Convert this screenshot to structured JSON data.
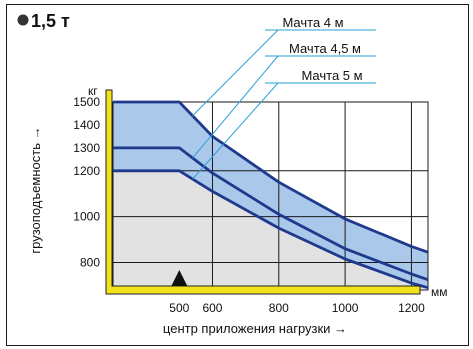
{
  "chart_data": {
    "type": "line",
    "title": "1,5 т",
    "xlabel": "центр приложения нагрузки →",
    "ylabel": "грузоподъемность →",
    "x_unit": "мм",
    "y_unit": "кг",
    "xlim": [
      300,
      1250
    ],
    "ylim": [
      680,
      1500
    ],
    "x_ticks": [
      500,
      600,
      800,
      1000,
      1200
    ],
    "x_tick_labels": [
      "500",
      "600",
      "800",
      "1000",
      "1200"
    ],
    "y_ticks": [
      800,
      1000,
      1200,
      1300,
      1400,
      1500
    ],
    "y_tick_labels": [
      "800",
      "1000",
      "1200",
      "1300",
      "1400",
      "1500"
    ],
    "grid": true,
    "series": [
      {
        "name": "Мачта 4 м",
        "x": [
          300,
          500,
          600,
          800,
          1000,
          1200,
          1250
        ],
        "y": [
          1500,
          1500,
          1350,
          1150,
          990,
          870,
          845
        ]
      },
      {
        "name": "Мачта 4,5 м",
        "x": [
          300,
          500,
          600,
          800,
          1000,
          1200,
          1250
        ],
        "y": [
          1300,
          1300,
          1190,
          1010,
          860,
          750,
          725
        ]
      },
      {
        "name": "Мачта 5 м",
        "x": [
          300,
          500,
          600,
          800,
          1000,
          1200,
          1250
        ],
        "y": [
          1200,
          1200,
          1110,
          950,
          815,
          710,
          690
        ]
      }
    ],
    "colors": {
      "curve": "#1f3a8c",
      "band_fill": "#a9c8ea",
      "below_fill": "#e2e2e2",
      "fork": "#f2e21a",
      "grid": "#1a1a1a"
    }
  }
}
